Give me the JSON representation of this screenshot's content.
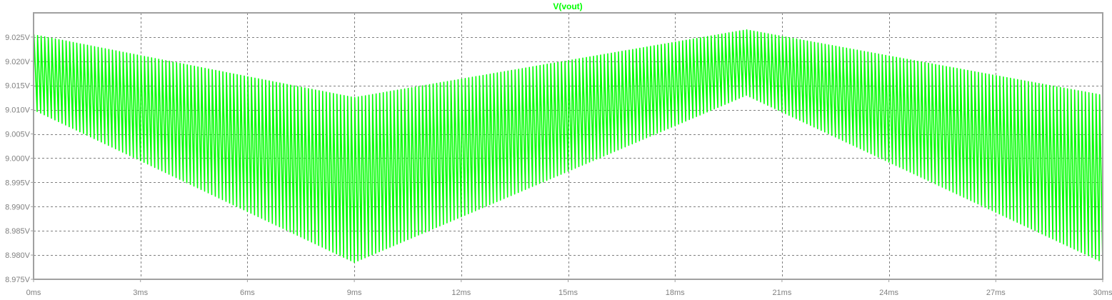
{
  "chart_data": {
    "type": "line",
    "title": "V(vout)",
    "xlabel": "",
    "ylabel": "",
    "x_unit": "ms",
    "y_unit": "V",
    "xlim": [
      0,
      30
    ],
    "ylim": [
      8.975,
      9.03
    ],
    "grid": true,
    "x_ticks": [
      0,
      3,
      6,
      9,
      12,
      15,
      18,
      21,
      24,
      27,
      30
    ],
    "x_tick_labels": [
      "0ms",
      "3ms",
      "6ms",
      "9ms",
      "12ms",
      "15ms",
      "18ms",
      "21ms",
      "24ms",
      "27ms",
      "30ms"
    ],
    "y_ticks": [
      8.975,
      8.98,
      8.985,
      8.99,
      8.995,
      9.0,
      9.005,
      9.01,
      9.015,
      9.02,
      9.025
    ],
    "y_tick_labels": [
      "8.975V",
      "8.980V",
      "8.985V",
      "8.990V",
      "8.995V",
      "9.000V",
      "9.005V",
      "9.010V",
      "9.015V",
      "9.020V",
      "9.025V"
    ],
    "series": [
      {
        "name": "V(vout)",
        "color": "#00ff00",
        "ripple_period_ms": 0.1,
        "envelope_x": [
          0,
          9,
          20,
          30
        ],
        "upper_envelope": [
          9.0255,
          9.0125,
          9.0265,
          9.013
        ],
        "lower_envelope": [
          9.01,
          8.9785,
          9.013,
          8.9785
        ]
      }
    ]
  },
  "colors": {
    "trace": "#00ff00",
    "frame": "#a0a0a0",
    "grid": "#808080",
    "tick_text": "#808080",
    "background": "#ffffff"
  }
}
